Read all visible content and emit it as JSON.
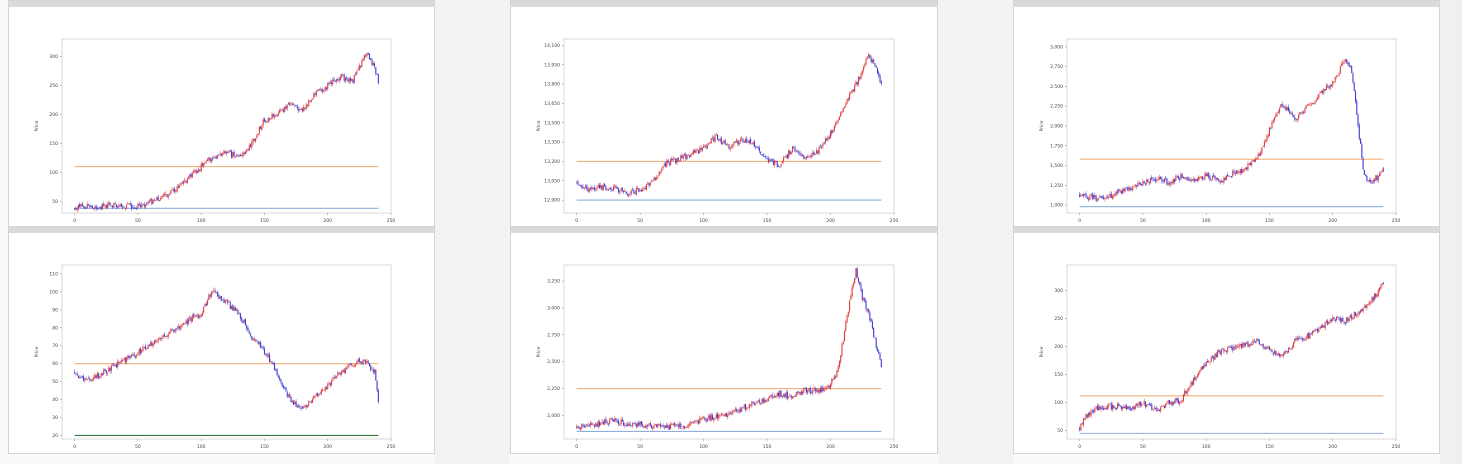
{
  "page": {
    "grid_columns": 3,
    "grid_rows": 2
  },
  "colors": {
    "up": "#e03a3a",
    "down": "#3b3bd4",
    "orange_line": "#f0b27a",
    "blue_line": "#8fb0d8",
    "green_line": "#3a7a3a"
  },
  "chart_data": [
    {
      "type": "candlestick",
      "ylabel": "Price",
      "xlim": [
        -10,
        250
      ],
      "ylim": [
        30,
        330
      ],
      "xticks": [
        0,
        50,
        100,
        150,
        200,
        250
      ],
      "xtick_labels": [
        "0",
        "50",
        "100",
        "150",
        "200",
        "250"
      ],
      "yticks": [
        50,
        100,
        150,
        200,
        250,
        300
      ],
      "ytick_labels": [
        "50",
        "100",
        "150",
        "200",
        "250",
        "300"
      ],
      "series": [
        {
          "kind": "close",
          "x": [
            0,
            10,
            20,
            30,
            40,
            50,
            60,
            70,
            80,
            90,
            100,
            110,
            120,
            130,
            140,
            150,
            160,
            170,
            180,
            190,
            200,
            210,
            220,
            230,
            237,
            240
          ],
          "values": [
            40,
            41,
            40,
            45,
            42,
            40,
            50,
            58,
            70,
            90,
            110,
            128,
            135,
            125,
            150,
            190,
            200,
            218,
            205,
            235,
            250,
            265,
            258,
            305,
            280,
            255
          ]
        }
      ],
      "hlines": [
        {
          "value": 110,
          "color": "orange"
        },
        {
          "value": 38,
          "color": "blue"
        }
      ]
    },
    {
      "type": "candlestick",
      "ylabel": "Price",
      "xlim": [
        -10,
        250
      ],
      "ylim": [
        12800,
        14150
      ],
      "xticks": [
        0,
        50,
        100,
        150,
        200,
        250
      ],
      "xtick_labels": [
        "0",
        "50",
        "100",
        "150",
        "200",
        "250"
      ],
      "yticks": [
        12900,
        13050,
        13200,
        13350,
        13500,
        13650,
        13800,
        13950,
        14100
      ],
      "ytick_labels": [
        "12,900",
        "13,050",
        "13,200",
        "13,350",
        "13,500",
        "13,650",
        "13,800",
        "13,950",
        "14,100"
      ],
      "series": [
        {
          "kind": "close",
          "x": [
            0,
            10,
            20,
            30,
            40,
            50,
            60,
            70,
            80,
            90,
            100,
            110,
            120,
            130,
            140,
            150,
            160,
            170,
            180,
            190,
            200,
            210,
            220,
            230,
            237,
            240
          ],
          "values": [
            13040,
            12980,
            13000,
            12990,
            12950,
            12980,
            13050,
            13180,
            13220,
            13250,
            13310,
            13390,
            13310,
            13370,
            13330,
            13220,
            13170,
            13300,
            13220,
            13280,
            13420,
            13620,
            13800,
            14020,
            13900,
            13800
          ]
        }
      ],
      "hlines": [
        {
          "value": 13200,
          "color": "orange"
        },
        {
          "value": 12900,
          "color": "blue"
        }
      ]
    },
    {
      "type": "candlestick",
      "ylabel": "Price",
      "xlim": [
        -10,
        250
      ],
      "ylim": [
        900,
        3100
      ],
      "xticks": [
        0,
        50,
        100,
        150,
        200,
        250
      ],
      "xtick_labels": [
        "0",
        "50",
        "100",
        "150",
        "200",
        "250"
      ],
      "yticks": [
        1000,
        1250,
        1500,
        1750,
        2000,
        2250,
        2500,
        2750,
        3000
      ],
      "ytick_labels": [
        "1,000",
        "1,250",
        "1,500",
        "1,750",
        "2,000",
        "2,250",
        "2,500",
        "2,750",
        "3,000"
      ],
      "series": [
        {
          "kind": "close",
          "x": [
            0,
            10,
            20,
            30,
            40,
            50,
            60,
            70,
            80,
            90,
            100,
            110,
            120,
            130,
            140,
            150,
            160,
            170,
            180,
            190,
            200,
            210,
            215,
            220,
            225,
            230,
            235,
            240
          ],
          "values": [
            1140,
            1100,
            1080,
            1160,
            1220,
            1270,
            1330,
            1290,
            1360,
            1310,
            1370,
            1300,
            1390,
            1450,
            1590,
            1950,
            2280,
            2100,
            2250,
            2400,
            2550,
            2850,
            2700,
            2000,
            1350,
            1300,
            1350,
            1450
          ]
        }
      ],
      "hlines": [
        {
          "value": 1580,
          "color": "orange"
        },
        {
          "value": 980,
          "color": "blue"
        }
      ]
    },
    {
      "type": "candlestick",
      "ylabel": "Price",
      "xlim": [
        -10,
        250
      ],
      "ylim": [
        18,
        115
      ],
      "xticks": [
        0,
        50,
        100,
        150,
        200,
        250
      ],
      "xtick_labels": [
        "0",
        "50",
        "100",
        "150",
        "200",
        "250"
      ],
      "yticks": [
        20,
        30,
        40,
        50,
        60,
        70,
        80,
        90,
        100,
        110
      ],
      "ytick_labels": [
        "20",
        "30",
        "40",
        "50",
        "60",
        "70",
        "80",
        "90",
        "100",
        "110"
      ],
      "series": [
        {
          "kind": "close",
          "x": [
            0,
            10,
            20,
            30,
            40,
            50,
            60,
            70,
            80,
            90,
            100,
            110,
            115,
            120,
            130,
            135,
            140,
            145,
            150,
            160,
            170,
            180,
            190,
            200,
            210,
            220,
            230,
            237,
            240
          ],
          "values": [
            55,
            50,
            54,
            58,
            62,
            66,
            71,
            76,
            79,
            84,
            88,
            102,
            96,
            94,
            88,
            82,
            75,
            72,
            67,
            55,
            40,
            35,
            42,
            48,
            55,
            60,
            62,
            55,
            40
          ]
        }
      ],
      "hlines": [
        {
          "value": 60,
          "color": "orange"
        },
        {
          "value": 20,
          "color": "green"
        }
      ]
    },
    {
      "type": "candlestick",
      "ylabel": "Price",
      "xlim": [
        -10,
        250
      ],
      "ylim": [
        1780,
        3400
      ],
      "xticks": [
        0,
        50,
        100,
        150,
        200,
        250
      ],
      "xtick_labels": [
        "0",
        "50",
        "100",
        "150",
        "200",
        "250"
      ],
      "yticks": [
        2000,
        2250,
        2500,
        2750,
        3000,
        3250
      ],
      "ytick_labels": [
        "2,000",
        "2,250",
        "2,500",
        "2,750",
        "3,000",
        "3,250"
      ],
      "series": [
        {
          "kind": "close",
          "x": [
            0,
            10,
            20,
            30,
            40,
            50,
            60,
            70,
            80,
            90,
            100,
            110,
            120,
            130,
            140,
            150,
            160,
            170,
            180,
            190,
            200,
            205,
            210,
            215,
            220,
            225,
            230,
            235,
            240
          ],
          "values": [
            1880,
            1900,
            1930,
            1950,
            1920,
            1920,
            1900,
            1890,
            1900,
            1920,
            1960,
            1990,
            2020,
            2070,
            2100,
            2150,
            2200,
            2180,
            2230,
            2230,
            2290,
            2400,
            2700,
            3050,
            3350,
            3100,
            2950,
            2700,
            2460
          ]
        }
      ],
      "hlines": [
        {
          "value": 2250,
          "color": "orange"
        },
        {
          "value": 1850,
          "color": "blue"
        }
      ]
    },
    {
      "type": "candlestick",
      "ylabel": "Price",
      "xlim": [
        -10,
        250
      ],
      "ylim": [
        35,
        345
      ],
      "xticks": [
        0,
        50,
        100,
        150,
        200,
        250
      ],
      "xtick_labels": [
        "0",
        "50",
        "100",
        "150",
        "200",
        "250"
      ],
      "yticks": [
        50,
        100,
        150,
        200,
        250,
        300
      ],
      "ytick_labels": [
        "50",
        "100",
        "150",
        "200",
        "250",
        "300"
      ],
      "series": [
        {
          "kind": "close",
          "x": [
            0,
            5,
            10,
            20,
            30,
            40,
            50,
            60,
            70,
            80,
            90,
            100,
            110,
            120,
            130,
            140,
            150,
            160,
            170,
            180,
            190,
            200,
            210,
            220,
            230,
            237,
            240
          ],
          "values": [
            55,
            75,
            88,
            92,
            94,
            90,
            100,
            85,
            98,
            105,
            140,
            170,
            190,
            198,
            202,
            208,
            195,
            180,
            210,
            218,
            230,
            252,
            245,
            260,
            280,
            300,
            312
          ]
        }
      ],
      "hlines": [
        {
          "value": 112,
          "color": "orange"
        },
        {
          "value": 45,
          "color": "blue"
        }
      ]
    }
  ]
}
